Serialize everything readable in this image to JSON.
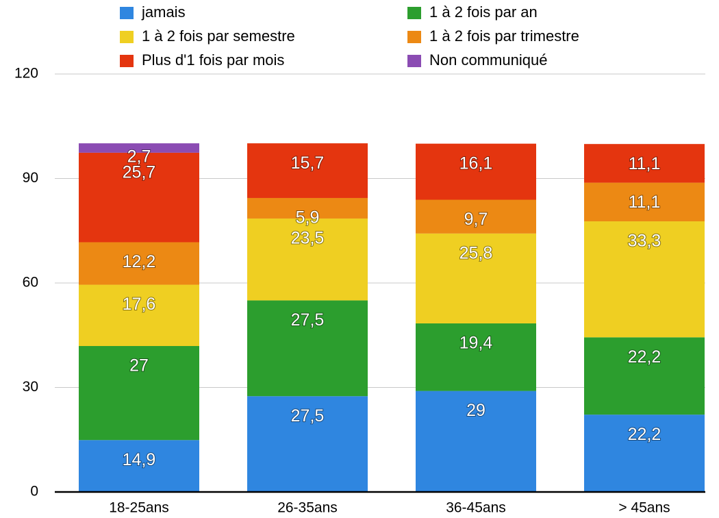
{
  "chart_data": {
    "type": "stacked-bar",
    "categories": [
      "18-25ans",
      "26-35ans",
      "36-45ans",
      "> 45ans"
    ],
    "series": [
      {
        "name": "jamais",
        "color": "#2f86e0",
        "values": [
          14.9,
          27.5,
          29,
          22.2
        ],
        "value_labels": [
          "14,9",
          "27,5",
          "29",
          "22,2"
        ]
      },
      {
        "name": "1 à 2 fois par an",
        "color": "#2c9e2e",
        "values": [
          27,
          27.5,
          19.4,
          22.2
        ],
        "value_labels": [
          "27",
          "27,5",
          "19,4",
          "22,2"
        ]
      },
      {
        "name": "1 à 2 fois par semestre",
        "color": "#efcf22",
        "values": [
          17.6,
          23.5,
          25.8,
          33.3
        ],
        "value_labels": [
          "17,6",
          "23,5",
          "25,8",
          "33,3"
        ]
      },
      {
        "name": "1 à 2 fois par trimestre",
        "color": "#ec8914",
        "values": [
          12.2,
          5.9,
          9.7,
          11.1
        ],
        "value_labels": [
          "12,2",
          "5,9",
          "9,7",
          "11,1"
        ]
      },
      {
        "name": "Plus d'1 fois par mois",
        "color": "#e4350f",
        "values": [
          25.7,
          15.7,
          16.1,
          11.1
        ],
        "value_labels": [
          "25,7",
          "15,7",
          "16,1",
          "11,1"
        ]
      },
      {
        "name": "Non communiqué",
        "color": "#8b4cb3",
        "values": [
          2.7,
          null,
          null,
          null
        ],
        "value_labels": [
          "2,7",
          null,
          null,
          null
        ]
      }
    ],
    "ylim": [
      0,
      120
    ],
    "yticks": [
      0,
      30,
      60,
      90,
      120
    ],
    "grid": true,
    "legend": "top"
  }
}
